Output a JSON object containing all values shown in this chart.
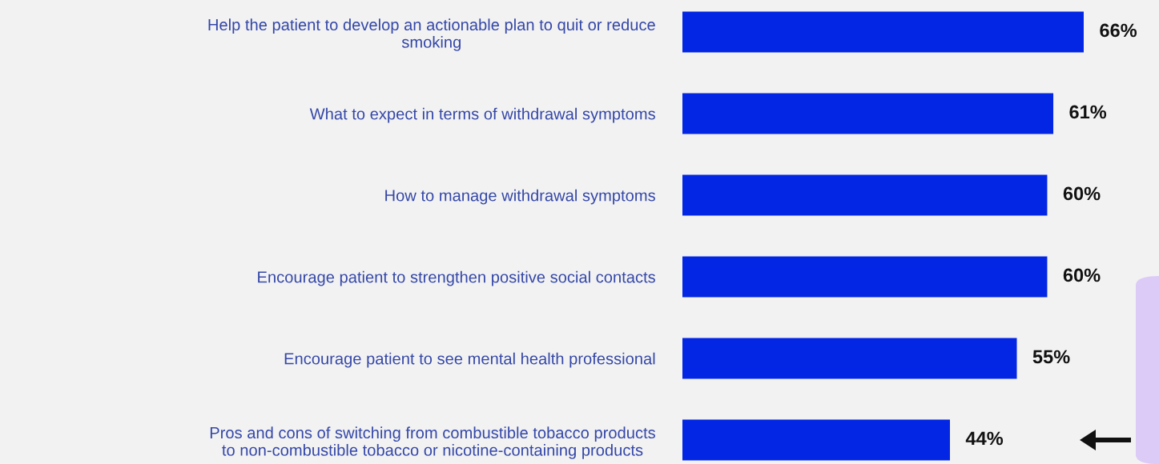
{
  "chart_data": {
    "type": "bar",
    "orientation": "horizontal",
    "data_labels": true,
    "categories": [
      "Help the patient to develop an actionable plan to quit or reduce\nsmoking",
      "What to expect in terms of withdrawal symptoms",
      "How to manage withdrawal symptoms",
      "Encourage patient to strengthen positive social contacts",
      "Encourage patient to see mental health professional",
      "Pros and cons of switching from combustible tobacco products\nto non-combustible tobacco or nicotine-containing products"
    ],
    "values": [
      66,
      61,
      60,
      60,
      55,
      44
    ],
    "color": "#0226e3",
    "value_labels": [
      "66%",
      "61%",
      "60%",
      "60%",
      "55%",
      "44%"
    ]
  }
}
